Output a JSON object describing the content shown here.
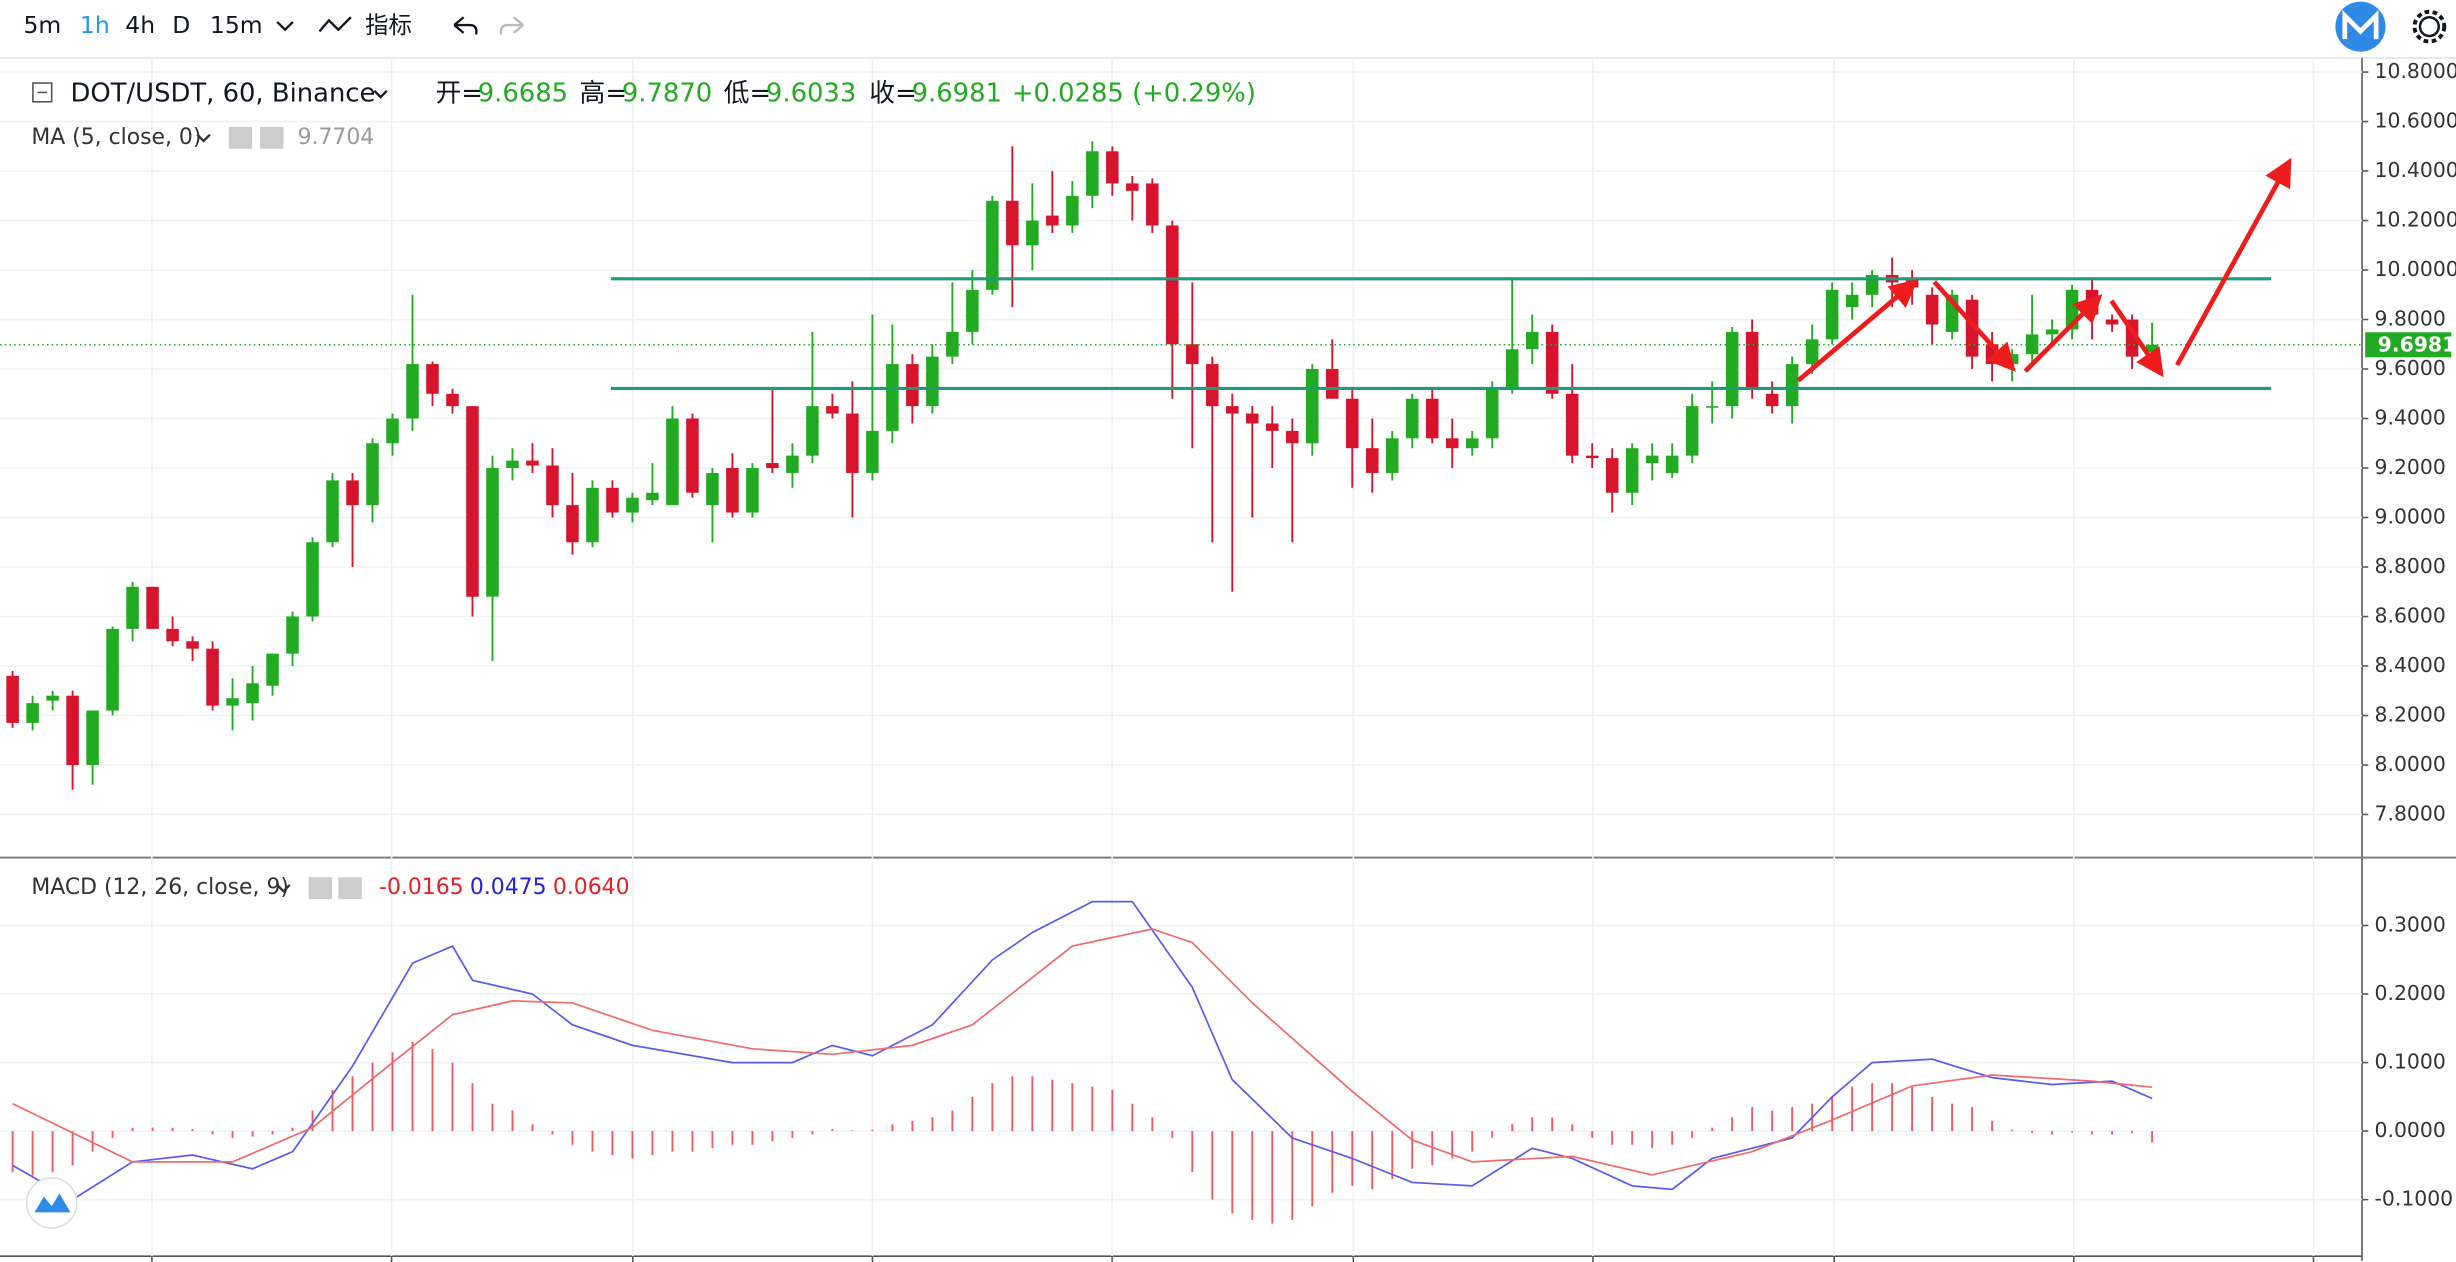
{
  "toolbar": {
    "intervals": [
      "5m",
      "1h",
      "4h",
      "D",
      "15m"
    ],
    "indicators": "指标"
  },
  "legend": {
    "symbol": "DOT/USDT, 60, Binance",
    "open_label": "开=",
    "open": "9.6685",
    "high_label": "高=",
    "high": "9.7870",
    "low_label": "低=",
    "low": "9.6033",
    "close_label": "收=",
    "close": "9.6981",
    "change": "+0.0285 (+0.29%)",
    "ma_label": "MA (5, close, 0)",
    "ma_value": "9.7704",
    "macd_label": "MACD (12, 26, close, 9)",
    "macd_hist": "-0.0165",
    "macd_dif": "0.0475",
    "macd_dea": "0.0640"
  },
  "chart_data": [
    {
      "type": "candlestick",
      "up_color": "#22ab22",
      "down_color": "#d7142d",
      "xlim": [
        -0.63,
        117.5
      ],
      "ylim": [
        7.629,
        10.838
      ],
      "yticks": [
        {
          "value": 10.8,
          "label": "10.8000"
        },
        {
          "value": 10.6,
          "label": "10.6000"
        },
        {
          "value": 10.4,
          "label": "10.4000"
        },
        {
          "value": 10.2,
          "label": "10.2000"
        },
        {
          "value": 10.0,
          "label": "10.0000"
        },
        {
          "value": 9.8,
          "label": "9.8000"
        },
        {
          "value": 9.6,
          "label": "9.6000"
        },
        {
          "value": 9.4,
          "label": "9.4000"
        },
        {
          "value": 9.2,
          "label": "9.2000"
        },
        {
          "value": 9.0,
          "label": "9.0000"
        },
        {
          "value": 8.8,
          "label": "8.8000"
        },
        {
          "value": 8.6,
          "label": "8.6000"
        },
        {
          "value": 8.4,
          "label": "8.4000"
        },
        {
          "value": 8.2,
          "label": "8.2000"
        },
        {
          "value": 8.0,
          "label": "8.0000"
        },
        {
          "value": 7.8,
          "label": "7.8000"
        }
      ],
      "last_price": 9.6981,
      "open": [
        8.36,
        8.17,
        8.26,
        8.28,
        8.0,
        8.22,
        8.55,
        8.72,
        8.55,
        8.5,
        8.47,
        8.24,
        8.25,
        8.32,
        8.45,
        8.6,
        8.9,
        9.15,
        9.05,
        9.3,
        9.4,
        9.62,
        9.5,
        9.45,
        8.68,
        9.2,
        9.23,
        9.21,
        9.05,
        8.9,
        9.12,
        9.02,
        9.07,
        9.05,
        9.4,
        9.05,
        9.2,
        9.02,
        9.22,
        9.18,
        9.25,
        9.45,
        9.42,
        9.18,
        9.35,
        9.62,
        9.45,
        9.65,
        9.75,
        9.92,
        10.28,
        10.1,
        10.22,
        10.18,
        10.3,
        10.48,
        10.35,
        10.35,
        10.18,
        9.7,
        9.62,
        9.45,
        9.42,
        9.38,
        9.35,
        9.3,
        9.6,
        9.48,
        9.28,
        9.18,
        9.32,
        9.48,
        9.32,
        9.28,
        9.32,
        9.52,
        9.68,
        9.75,
        9.5,
        9.25,
        9.24,
        9.1,
        9.22,
        9.18,
        9.25,
        9.45,
        9.45,
        9.75,
        9.5,
        9.45,
        9.62,
        9.72,
        9.85,
        9.9,
        9.98,
        9.97,
        9.9,
        9.75,
        9.88,
        9.7,
        9.62,
        9.66,
        9.74,
        9.76,
        9.92,
        9.8,
        9.8,
        9.6685
      ],
      "high": [
        8.38,
        8.28,
        8.3,
        8.3,
        8.22,
        8.56,
        8.74,
        8.72,
        8.6,
        8.52,
        8.5,
        8.35,
        8.4,
        8.45,
        8.62,
        8.92,
        9.18,
        9.18,
        9.32,
        9.42,
        9.9,
        9.63,
        9.52,
        9.45,
        9.25,
        9.28,
        9.3,
        9.28,
        9.18,
        9.15,
        9.15,
        9.1,
        9.22,
        9.45,
        9.42,
        9.2,
        9.26,
        9.22,
        9.52,
        9.3,
        9.75,
        9.5,
        9.55,
        9.82,
        9.78,
        9.66,
        9.7,
        9.95,
        10.0,
        10.3,
        10.5,
        10.35,
        10.4,
        10.36,
        10.52,
        10.5,
        10.38,
        10.37,
        10.2,
        9.95,
        9.65,
        9.5,
        9.45,
        9.45,
        9.4,
        9.62,
        9.72,
        9.52,
        9.4,
        9.35,
        9.5,
        9.52,
        9.4,
        9.35,
        9.55,
        9.96,
        9.82,
        9.78,
        9.62,
        9.3,
        9.28,
        9.3,
        9.3,
        9.3,
        9.5,
        9.55,
        9.77,
        9.8,
        9.55,
        9.65,
        9.78,
        9.95,
        9.95,
        10.0,
        10.05,
        10.0,
        9.93,
        9.92,
        9.9,
        9.75,
        9.68,
        9.9,
        9.8,
        9.94,
        9.97,
        9.82,
        9.82,
        9.787
      ],
      "low": [
        8.15,
        8.14,
        8.22,
        7.9,
        7.92,
        8.2,
        8.5,
        8.55,
        8.48,
        8.42,
        8.22,
        8.14,
        8.18,
        8.28,
        8.4,
        8.58,
        8.88,
        8.8,
        8.98,
        9.25,
        9.35,
        9.45,
        9.42,
        8.6,
        8.42,
        9.15,
        9.18,
        9.0,
        8.85,
        8.88,
        9.0,
        8.98,
        9.05,
        9.05,
        9.08,
        8.9,
        9.0,
        9.0,
        9.18,
        9.12,
        9.22,
        9.4,
        9.0,
        9.15,
        9.3,
        9.38,
        9.42,
        9.62,
        9.7,
        9.9,
        9.85,
        10.0,
        10.15,
        10.15,
        10.25,
        10.3,
        10.2,
        10.15,
        9.48,
        9.28,
        8.9,
        8.7,
        9.0,
        9.2,
        8.9,
        9.25,
        9.48,
        9.12,
        9.1,
        9.15,
        9.28,
        9.3,
        9.2,
        9.25,
        9.28,
        9.5,
        9.62,
        9.48,
        9.22,
        9.2,
        9.02,
        9.05,
        9.15,
        9.16,
        9.22,
        9.38,
        9.4,
        9.48,
        9.42,
        9.38,
        9.58,
        9.7,
        9.8,
        9.85,
        9.85,
        9.86,
        9.7,
        9.72,
        9.6,
        9.55,
        9.55,
        9.62,
        9.7,
        9.72,
        9.72,
        9.75,
        9.6,
        9.6033
      ],
      "close": [
        8.17,
        8.25,
        8.28,
        8.0,
        8.22,
        8.55,
        8.72,
        8.55,
        8.5,
        8.47,
        8.24,
        8.27,
        8.33,
        8.45,
        8.6,
        8.9,
        9.15,
        9.05,
        9.3,
        9.4,
        9.62,
        9.5,
        9.45,
        8.68,
        9.2,
        9.23,
        9.21,
        9.05,
        8.9,
        9.12,
        9.02,
        9.08,
        9.1,
        9.4,
        9.1,
        9.18,
        9.02,
        9.2,
        9.2,
        9.25,
        9.45,
        9.42,
        9.18,
        9.35,
        9.62,
        9.45,
        9.65,
        9.75,
        9.92,
        10.28,
        10.1,
        10.2,
        10.18,
        10.3,
        10.48,
        10.35,
        10.32,
        10.18,
        9.7,
        9.62,
        9.45,
        9.42,
        9.38,
        9.35,
        9.3,
        9.6,
        9.48,
        9.28,
        9.18,
        9.32,
        9.48,
        9.32,
        9.28,
        9.32,
        9.52,
        9.68,
        9.75,
        9.5,
        9.25,
        9.24,
        9.1,
        9.28,
        9.25,
        9.25,
        9.45,
        9.45,
        9.75,
        9.52,
        9.45,
        9.62,
        9.72,
        9.92,
        9.9,
        9.98,
        9.95,
        9.93,
        9.78,
        9.9,
        9.65,
        9.62,
        9.66,
        9.74,
        9.76,
        9.92,
        9.82,
        9.78,
        9.65,
        9.6981
      ]
    },
    {
      "type": "macd",
      "xlim": [
        -0.63,
        117.5
      ],
      "ylim": [
        -0.178,
        0.398
      ],
      "yticks": [
        {
          "value": 0.3,
          "label": "0.3000"
        },
        {
          "value": 0.2,
          "label": "0.2000"
        },
        {
          "value": 0.1,
          "label": "0.1000"
        },
        {
          "value": 0,
          "label": "0.0000"
        },
        {
          "value": -0.1,
          "label": "-0.1000"
        }
      ],
      "hist_color": "#f0595f",
      "hist": [
        -0.06,
        -0.065,
        -0.06,
        -0.05,
        -0.03,
        -0.01,
        0.005,
        0.005,
        0.005,
        0.003,
        -0.005,
        -0.01,
        -0.008,
        -0.005,
        0.005,
        0.03,
        0.06,
        0.08,
        0.1,
        0.115,
        0.13,
        0.12,
        0.1,
        0.07,
        0.04,
        0.03,
        0.01,
        -0.005,
        -0.02,
        -0.03,
        -0.035,
        -0.04,
        -0.035,
        -0.03,
        -0.03,
        -0.025,
        -0.02,
        -0.02,
        -0.015,
        -0.01,
        -0.005,
        0.003,
        0.001,
        0.002,
        0.01,
        0.015,
        0.02,
        0.03,
        0.05,
        0.07,
        0.08,
        0.08,
        0.075,
        0.07,
        0.065,
        0.06,
        0.04,
        0.02,
        -0.01,
        -0.06,
        -0.1,
        -0.12,
        -0.13,
        -0.135,
        -0.13,
        -0.11,
        -0.09,
        -0.08,
        -0.085,
        -0.07,
        -0.055,
        -0.05,
        -0.04,
        -0.03,
        -0.01,
        0.01,
        0.02,
        0.02,
        0.01,
        -0.01,
        -0.02,
        -0.02,
        -0.025,
        -0.02,
        -0.01,
        0.005,
        0.02,
        0.035,
        0.03,
        0.035,
        0.04,
        0.05,
        0.065,
        0.07,
        0.07,
        0.065,
        0.05,
        0.04,
        0.035,
        0.015,
        0.002,
        -0.003,
        -0.005,
        -0.002,
        -0.005,
        -0.005,
        -0.003,
        -0.0165
      ],
      "lines": [
        {
          "color": "#5b5bf0",
          "x": [
            0,
            3,
            6,
            9,
            12,
            14,
            17,
            20,
            22,
            23,
            26,
            28,
            31,
            36,
            39,
            41,
            43,
            46,
            49,
            51,
            54,
            56,
            59,
            61,
            64,
            67,
            70,
            73,
            76,
            78,
            81,
            83,
            85,
            89,
            91,
            93,
            96,
            99,
            102,
            105,
            107
          ],
          "values": [
            -0.05,
            -0.1,
            -0.045,
            -0.035,
            -0.055,
            -0.03,
            0.095,
            0.245,
            0.27,
            0.22,
            0.2,
            0.155,
            0.125,
            0.1,
            0.1,
            0.125,
            0.11,
            0.155,
            0.25,
            0.29,
            0.335,
            0.335,
            0.21,
            0.075,
            -0.01,
            -0.04,
            -0.075,
            -0.08,
            -0.025,
            -0.04,
            -0.08,
            -0.085,
            -0.04,
            -0.01,
            0.05,
            0.1,
            0.105,
            0.078,
            0.068,
            0.073,
            0.0475
          ]
        },
        {
          "color": "#f06b6b",
          "x": [
            0,
            6,
            11,
            15,
            19,
            22,
            25,
            28,
            32,
            37,
            41,
            45,
            48,
            53,
            57,
            59,
            62,
            67,
            70,
            73,
            78,
            82,
            87,
            91,
            95,
            99,
            104,
            107
          ],
          "values": [
            0.04,
            -0.045,
            -0.045,
            0.005,
            0.1,
            0.17,
            0.19,
            0.187,
            0.147,
            0.12,
            0.112,
            0.125,
            0.155,
            0.27,
            0.295,
            0.275,
            0.187,
            0.058,
            -0.013,
            -0.045,
            -0.037,
            -0.064,
            -0.03,
            0.016,
            0.066,
            0.082,
            0.073,
            0.064
          ]
        }
      ]
    }
  ]
}
